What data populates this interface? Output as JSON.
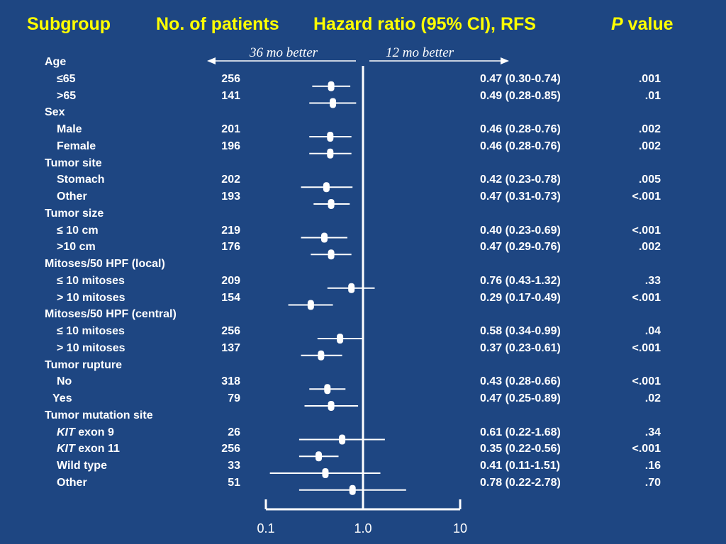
{
  "header": {
    "subgroup": "Subgroup",
    "patients": "No. of patients",
    "hr": "Hazard ratio (95% CI), RFS",
    "p_italic": "P",
    "p_rest": " value"
  },
  "annotations": {
    "left_better": "36 mo better",
    "right_better": "12 mo better"
  },
  "colors": {
    "background": "#1e4682",
    "header": "#ffff00",
    "text": "#ffffff"
  },
  "chart_data": {
    "type": "forest",
    "x_scale": "log",
    "xlim": [
      0.1,
      10
    ],
    "reference_line": 1.0,
    "x_ticks": [
      "0.1",
      "1.0",
      "10"
    ],
    "rows": [
      {
        "label": "Age",
        "kind": "group"
      },
      {
        "label": "≤65",
        "kind": "sub",
        "n": "256",
        "hr_text": "0.47 (0.30-0.74)",
        "p": ".001",
        "hr": 0.47,
        "lo": 0.3,
        "hi": 0.74
      },
      {
        "label": ">65",
        "kind": "sub",
        "n": "141",
        "hr_text": "0.49 (0.28-0.85)",
        "p": ".01",
        "hr": 0.49,
        "lo": 0.28,
        "hi": 0.85
      },
      {
        "label": "Sex",
        "kind": "group"
      },
      {
        "label": "Male",
        "kind": "sub",
        "n": "201",
        "hr_text": "0.46 (0.28-0.76)",
        "p": ".002",
        "hr": 0.46,
        "lo": 0.28,
        "hi": 0.76
      },
      {
        "label": "Female",
        "kind": "sub",
        "n": "196",
        "hr_text": "0.46 (0.28-0.76)",
        "p": ".002",
        "hr": 0.46,
        "lo": 0.28,
        "hi": 0.76
      },
      {
        "label": "Tumor site",
        "kind": "group"
      },
      {
        "label": "Stomach",
        "kind": "sub",
        "n": "202",
        "hr_text": "0.42 (0.23-0.78)",
        "p": ".005",
        "hr": 0.42,
        "lo": 0.23,
        "hi": 0.78
      },
      {
        "label": "Other",
        "kind": "sub",
        "n": "193",
        "hr_text": "0.47 (0.31-0.73)",
        "p": "<.001",
        "hr": 0.47,
        "lo": 0.31,
        "hi": 0.73
      },
      {
        "label": "Tumor size",
        "kind": "group"
      },
      {
        "label": "≤ 10 cm",
        "kind": "sub",
        "n": "219",
        "hr_text": "0.40 (0.23-0.69)",
        "p": "<.001",
        "hr": 0.4,
        "lo": 0.23,
        "hi": 0.69
      },
      {
        "label": ">10 cm",
        "kind": "sub",
        "n": "176",
        "hr_text": "0.47 (0.29-0.76)",
        "p": ".002",
        "hr": 0.47,
        "lo": 0.29,
        "hi": 0.76
      },
      {
        "label": "Mitoses/50 HPF (local)",
        "kind": "group"
      },
      {
        "label": "≤ 10 mitoses",
        "kind": "sub",
        "n": "209",
        "hr_text": "0.76 (0.43-1.32)",
        "p": ".33",
        "hr": 0.76,
        "lo": 0.43,
        "hi": 1.32
      },
      {
        "label": "> 10 mitoses",
        "kind": "sub",
        "n": "154",
        "hr_text": "0.29 (0.17-0.49)",
        "p": "<.001",
        "hr": 0.29,
        "lo": 0.17,
        "hi": 0.49
      },
      {
        "label": "Mitoses/50 HPF (central)",
        "kind": "group"
      },
      {
        "label": "≤ 10 mitoses",
        "kind": "sub",
        "n": "256",
        "hr_text": "0.58 (0.34-0.99)",
        "p": ".04",
        "hr": 0.58,
        "lo": 0.34,
        "hi": 0.99
      },
      {
        "label": "> 10 mitoses",
        "kind": "sub",
        "n": "137",
        "hr_text": "0.37 (0.23-0.61)",
        "p": "<.001",
        "hr": 0.37,
        "lo": 0.23,
        "hi": 0.61
      },
      {
        "label": "Tumor rupture",
        "kind": "group"
      },
      {
        "label": "No",
        "kind": "sub",
        "n": "318",
        "hr_text": "0.43 (0.28-0.66)",
        "p": "<.001",
        "hr": 0.43,
        "lo": 0.28,
        "hi": 0.66
      },
      {
        "label": "Yes",
        "kind": "sub",
        "n": "79",
        "hr_text": "0.47 (0.25-0.89)",
        "p": ".02",
        "hr": 0.47,
        "lo": 0.25,
        "hi": 0.89
      },
      {
        "label": "Tumor mutation site",
        "kind": "group"
      },
      {
        "label_italic": "KIT",
        "label": " exon 9",
        "kind": "sub",
        "n": "26",
        "hr_text": "0.61 (0.22-1.68)",
        "p": ".34",
        "hr": 0.61,
        "lo": 0.22,
        "hi": 1.68
      },
      {
        "label_italic": "KIT",
        "label": " exon 11",
        "kind": "sub",
        "n": "256",
        "hr_text": "0.35 (0.22-0.56)",
        "p": "<.001",
        "hr": 0.35,
        "lo": 0.22,
        "hi": 0.56
      },
      {
        "label": "Wild type",
        "kind": "sub",
        "n": "33",
        "hr_text": "0.41 (0.11-1.51)",
        "p": ".16",
        "hr": 0.41,
        "lo": 0.11,
        "hi": 1.51
      },
      {
        "label": "Other",
        "kind": "sub",
        "n": "51",
        "hr_text": "0.78 (0.22-2.78)",
        "p": ".70",
        "hr": 0.78,
        "lo": 0.22,
        "hi": 2.78
      }
    ]
  }
}
